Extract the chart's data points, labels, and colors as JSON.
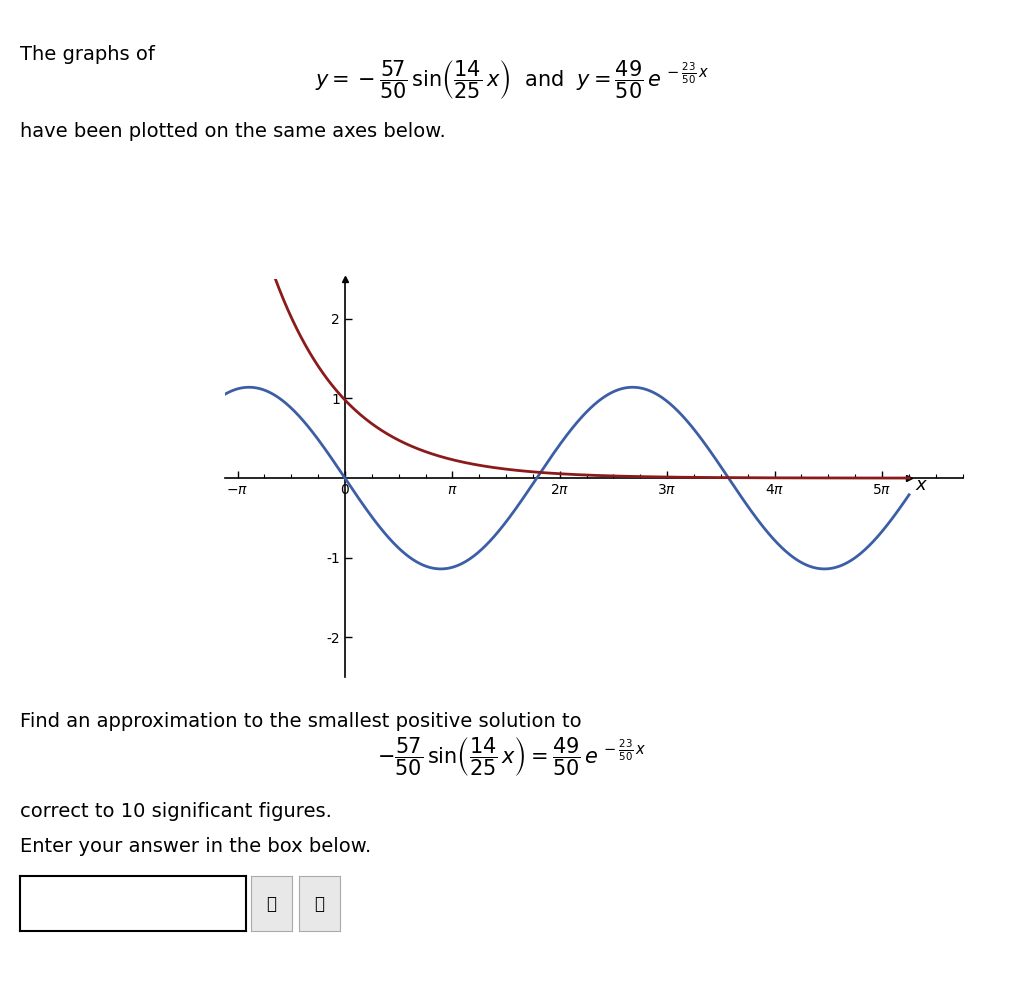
{
  "title_text": "The graphs of",
  "eq1_text": "$y = -\\dfrac{57}{50} \\sin\\left(\\dfrac{14}{25}\\, x\\right)$  and  $y = \\dfrac{49}{50}\\, e^{-\\frac{23}{50}\\, x}$",
  "subtitle_text": "have been plotted on the same axes below.",
  "find_text": "Find an approximation to the smallest positive solution to",
  "eq2_text": "$-\\dfrac{57}{50} \\sin\\left(\\dfrac{14}{25}\\, x\\right) = \\dfrac{49}{50}\\, e^{-\\frac{23}{50}\\, x}$",
  "sig_text": "correct to 10 significant figures.",
  "enter_text": "Enter your answer in the box below.",
  "sin_A": -1.14,
  "sin_freq": 0.56,
  "exp_A": 0.98,
  "exp_decay": -0.46,
  "x_min": -3.5,
  "x_max": 16.5,
  "y_min": -2.5,
  "y_max": 2.5,
  "x_ticks": [
    -3.14159265,
    0,
    3.14159265,
    6.2831853,
    9.42477796,
    12.56637061,
    15.70796327
  ],
  "x_tick_labels": [
    "$-\\pi$",
    "$0$",
    "$\\pi$",
    "$2\\pi$",
    "$3\\pi$",
    "$4\\pi$",
    "$5\\pi$"
  ],
  "y_ticks": [
    -2,
    -1,
    1,
    2
  ],
  "y_tick_labels": [
    "-2",
    "-1",
    "1",
    "2"
  ],
  "sin_color": "#3B5EA6",
  "exp_color": "#8B1A1A",
  "bg_color": "#FFFFFF",
  "axis_color": "#000000",
  "text_color": "#1A1A2E",
  "xlabel": "x",
  "figsize": [
    10.24,
    9.96
  ],
  "dpi": 100
}
